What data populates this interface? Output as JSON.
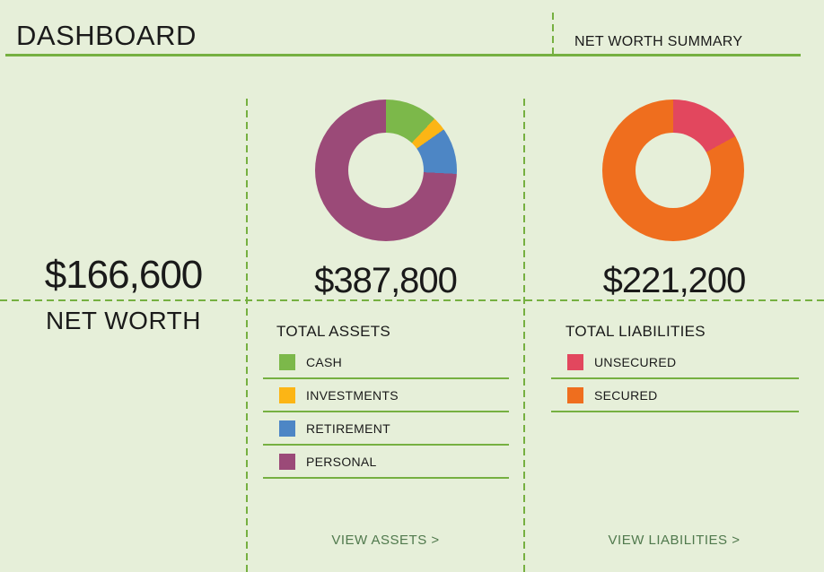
{
  "colors": {
    "page-bg": "#e6efd9",
    "accent": "#76b041",
    "text": "#1a1a1a",
    "link": "#50794d"
  },
  "header": {
    "title": "DASHBOARD",
    "summary_label": "NET WORTH SUMMARY"
  },
  "net_worth": {
    "value": "$166,600",
    "label": "NET WORTH"
  },
  "assets": {
    "total_value": "$387,800",
    "heading": "TOTAL ASSETS",
    "legend": [
      {
        "label": "CASH",
        "color": "#7cb84a"
      },
      {
        "label": "INVESTMENTS",
        "color": "#fcb515"
      },
      {
        "label": "RETIREMENT",
        "color": "#4d86c5"
      },
      {
        "label": "PERSONAL",
        "color": "#9b4a78"
      }
    ],
    "link_label": "VIEW ASSETS >"
  },
  "liabilities": {
    "total_value": "$221,200",
    "heading": "TOTAL LIABILITIES",
    "legend": [
      {
        "label": "UNSECURED",
        "color": "#e2475e"
      },
      {
        "label": "SECURED",
        "color": "#ef6e1e"
      }
    ],
    "link_label": "VIEW LIABILITIES >"
  },
  "chart_data": [
    {
      "type": "pie",
      "subtype": "donut",
      "title": "TOTAL ASSETS",
      "total_label": "$387,800",
      "total_value": 387800,
      "categories": [
        "CASH",
        "INVESTMENTS",
        "RETIREMENT",
        "PERSONAL"
      ],
      "values_pct": [
        12,
        3.2,
        10.6,
        74.2
      ],
      "values_est_usd": [
        46500,
        12400,
        41100,
        287800
      ],
      "colors": [
        "#7cb84a",
        "#fcb515",
        "#4d86c5",
        "#9b4a78"
      ],
      "start_angle_deg": 0,
      "direction": "clockwise",
      "legend_position": "below"
    },
    {
      "type": "pie",
      "subtype": "donut",
      "title": "TOTAL LIABILITIES",
      "total_label": "$221,200",
      "total_value": 221200,
      "categories": [
        "UNSECURED",
        "SECURED"
      ],
      "values_pct": [
        17,
        83
      ],
      "values_est_usd": [
        37600,
        183600
      ],
      "colors": [
        "#e2475e",
        "#ef6e1e"
      ],
      "start_angle_deg": 0,
      "direction": "clockwise",
      "legend_position": "below"
    }
  ]
}
